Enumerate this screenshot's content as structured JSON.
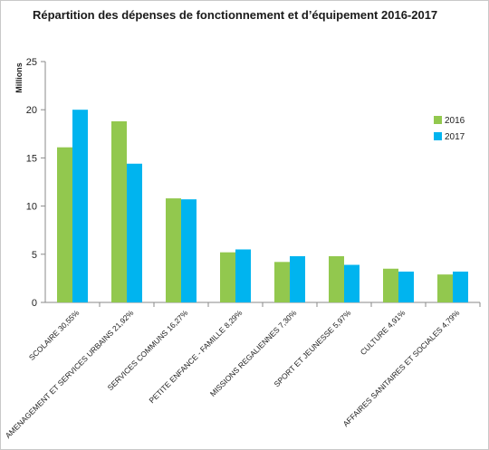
{
  "chart_data": {
    "type": "bar",
    "title": "Répartition des dépenses de fonctionnement et d’équipement 2016-2017",
    "ylabel": "Millions",
    "xlabel": "",
    "ylim": [
      0,
      25
    ],
    "yticks": [
      "0",
      "5",
      "10",
      "15",
      "20",
      "25"
    ],
    "grid": false,
    "legend_position": "right",
    "categories": [
      "SCOLAIRE 30,55%",
      "AMENAGEMENT ET SERVICES URBAINS 21,92%",
      "SERVICES COMMUNS 16,27%",
      "PETITE ENFANCE - FAMILLE 8,29%",
      "MISSIONS REGALIENNES 7,30%",
      "SPORT ET JEUNESSE 5,97%",
      "CULTURE 4,91%",
      "AFFAIRES SANITAIRES ET SOCIALES 4,79%"
    ],
    "series": [
      {
        "name": "2016",
        "color": "#92c84e",
        "values": [
          16.1,
          18.8,
          10.8,
          5.2,
          4.2,
          4.8,
          3.5,
          2.9
        ]
      },
      {
        "name": "2017",
        "color": "#00b4ef",
        "values": [
          20.0,
          14.4,
          10.7,
          5.5,
          4.8,
          3.9,
          3.2,
          3.2
        ]
      }
    ]
  }
}
